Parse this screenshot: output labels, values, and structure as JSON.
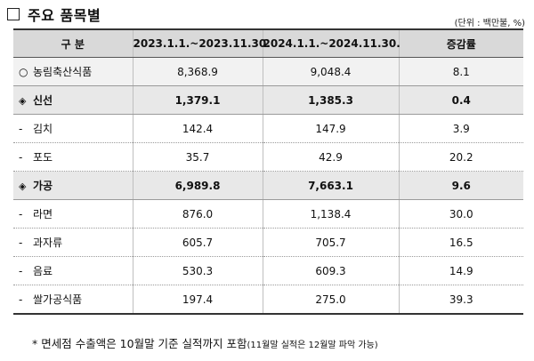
{
  "title": "주요 품목별",
  "unit": "(단위 : 백만불, %)",
  "table": {
    "headers": [
      "구 분",
      "2023.1.1.~2023.11.30.",
      "2024.1.1.~2024.11.30.",
      "증감률"
    ],
    "rows": [
      {
        "symbol": "○",
        "label": "농림축산식품",
        "v1": "8,368.9",
        "v2": "9,048.4",
        "rate": "8.1"
      },
      {
        "symbol": "◈",
        "label": "신선",
        "v1": "1,379.1",
        "v2": "1,385.3",
        "rate": "0.4"
      },
      {
        "symbol": "-",
        "label": "김치",
        "v1": "142.4",
        "v2": "147.9",
        "rate": "3.9"
      },
      {
        "symbol": "-",
        "label": "포도",
        "v1": "35.7",
        "v2": "42.9",
        "rate": "20.2"
      },
      {
        "symbol": "◈",
        "label": "가공",
        "v1": "6,989.8",
        "v2": "7,663.1",
        "rate": "9.6"
      },
      {
        "symbol": "-",
        "label": "라면",
        "v1": "876.0",
        "v2": "1,138.4",
        "rate": "30.0"
      },
      {
        "symbol": "-",
        "label": "과자류",
        "v1": "605.7",
        "v2": "705.7",
        "rate": "16.5"
      },
      {
        "symbol": "-",
        "label": "음료",
        "v1": "530.3",
        "v2": "609.3",
        "rate": "14.9"
      },
      {
        "symbol": "-",
        "label": "쌀가공식품",
        "v1": "197.4",
        "v2": "275.0",
        "rate": "39.3"
      }
    ]
  },
  "footnote": {
    "main": "* 면세점 수출액은 10월말 기준 실적까지 포함",
    "small": "(11월말 실적은 12월말 파악 가능)"
  }
}
